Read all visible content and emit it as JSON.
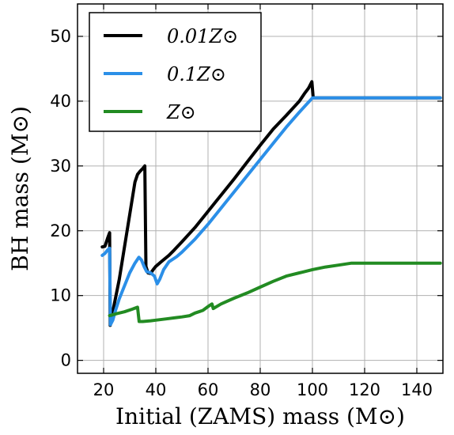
{
  "chart_data": {
    "type": "line",
    "xlabel": "Initial (ZAMS) mass (M⊙)",
    "ylabel": "BH mass (M⊙)",
    "xlim": [
      10,
      150
    ],
    "ylim": [
      -2,
      55
    ],
    "xticks": [
      20,
      40,
      60,
      80,
      100,
      120,
      140
    ],
    "yticks": [
      0,
      10,
      20,
      30,
      40,
      50
    ],
    "grid": true,
    "legend_position": "top-left",
    "series": [
      {
        "name": "0.01Z⊙",
        "color": "#000000",
        "points": [
          [
            19.5,
            17.5
          ],
          [
            20.5,
            17.6
          ],
          [
            21.5,
            18.8
          ],
          [
            22.3,
            19.7
          ],
          [
            22.5,
            5.4
          ],
          [
            23,
            6.5
          ],
          [
            24,
            8.5
          ],
          [
            26,
            12.5
          ],
          [
            28,
            17.5
          ],
          [
            30,
            22.5
          ],
          [
            32,
            27.5
          ],
          [
            33,
            28.7
          ],
          [
            34,
            29.2
          ],
          [
            35,
            29.6
          ],
          [
            35.8,
            30
          ],
          [
            36.2,
            14.5
          ],
          [
            37,
            13.5
          ],
          [
            38,
            13.4
          ],
          [
            39,
            14
          ],
          [
            40,
            14.5
          ],
          [
            42,
            15.2
          ],
          [
            45,
            16.2
          ],
          [
            47,
            17
          ],
          [
            50,
            18.3
          ],
          [
            55,
            20.5
          ],
          [
            60,
            23
          ],
          [
            65,
            25.5
          ],
          [
            70,
            28
          ],
          [
            75,
            30.6
          ],
          [
            80,
            33.2
          ],
          [
            85,
            35.7
          ],
          [
            90,
            37.8
          ],
          [
            95,
            40
          ],
          [
            97,
            41.2
          ],
          [
            98.5,
            42
          ],
          [
            99.8,
            43
          ],
          [
            100.3,
            40.5
          ],
          [
            101,
            40.5
          ],
          [
            103,
            40.5
          ],
          [
            110,
            40.5
          ],
          [
            120,
            40.5
          ],
          [
            130,
            40.5
          ],
          [
            140,
            40.5
          ],
          [
            149,
            40.5
          ]
        ]
      },
      {
        "name": "0.1Z⊙",
        "color": "#2B8FE8",
        "points": [
          [
            19.5,
            16.2
          ],
          [
            20.5,
            16.5
          ],
          [
            21.5,
            17
          ],
          [
            22.3,
            17.3
          ],
          [
            22.6,
            5.5
          ],
          [
            23.5,
            6.2
          ],
          [
            24.5,
            7.6
          ],
          [
            26,
            9.5
          ],
          [
            28,
            11.5
          ],
          [
            30,
            13.5
          ],
          [
            32,
            15
          ],
          [
            33.5,
            15.9
          ],
          [
            34.5,
            15.5
          ],
          [
            35.5,
            14.5
          ],
          [
            36.5,
            13.7
          ],
          [
            38,
            13.5
          ],
          [
            39.5,
            13
          ],
          [
            40.5,
            11.8
          ],
          [
            41.5,
            12.5
          ],
          [
            43,
            14
          ],
          [
            45,
            15.2
          ],
          [
            48,
            16
          ],
          [
            50,
            16.7
          ],
          [
            55,
            18.7
          ],
          [
            60,
            21
          ],
          [
            65,
            23.5
          ],
          [
            70,
            26
          ],
          [
            75,
            28.5
          ],
          [
            80,
            31
          ],
          [
            85,
            33.5
          ],
          [
            90,
            36
          ],
          [
            95,
            38.3
          ],
          [
            100,
            40.5
          ],
          [
            101,
            40.5
          ],
          [
            103,
            40.5
          ],
          [
            110,
            40.5
          ],
          [
            120,
            40.5
          ],
          [
            130,
            40.5
          ],
          [
            140,
            40.5
          ],
          [
            149,
            40.5
          ]
        ]
      },
      {
        "name": "Z⊙",
        "color": "#228B22",
        "points": [
          [
            22.3,
            6.9
          ],
          [
            25,
            7.2
          ],
          [
            28,
            7.5
          ],
          [
            31,
            7.9
          ],
          [
            33,
            8.2
          ],
          [
            33.6,
            6
          ],
          [
            35,
            6
          ],
          [
            38,
            6.1
          ],
          [
            40,
            6.2
          ],
          [
            44,
            6.4
          ],
          [
            48,
            6.6
          ],
          [
            50,
            6.7
          ],
          [
            53,
            6.9
          ],
          [
            55,
            7.3
          ],
          [
            58,
            7.7
          ],
          [
            60,
            8.3
          ],
          [
            61.5,
            8.7
          ],
          [
            62,
            8
          ],
          [
            65,
            8.7
          ],
          [
            70,
            9.6
          ],
          [
            75,
            10.4
          ],
          [
            80,
            11.3
          ],
          [
            85,
            12.2
          ],
          [
            90,
            13
          ],
          [
            95,
            13.5
          ],
          [
            100,
            14
          ],
          [
            105,
            14.4
          ],
          [
            110,
            14.7
          ],
          [
            115,
            15
          ],
          [
            120,
            15
          ],
          [
            125,
            15
          ],
          [
            130,
            15
          ],
          [
            140,
            15
          ],
          [
            149,
            15
          ]
        ]
      }
    ]
  }
}
